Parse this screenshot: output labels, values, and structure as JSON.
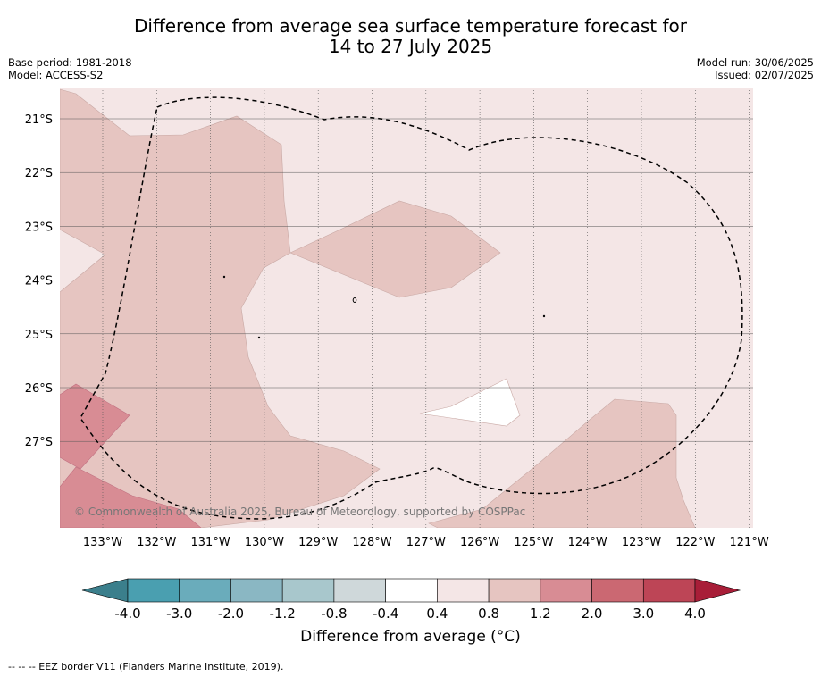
{
  "title_line1": "Difference from average sea surface temperature forecast for",
  "title_line2": "14 to 27 July 2025",
  "meta_left": [
    "Base period: 1981-2018",
    "Model: ACCESS-S2"
  ],
  "meta_right": [
    "Model run: 30/06/2025",
    "Issued: 02/07/2025"
  ],
  "map": {
    "lon_ticks": [
      "133°W",
      "132°W",
      "131°W",
      "130°W",
      "129°W",
      "128°W",
      "127°W",
      "126°W",
      "125°W",
      "124°W",
      "123°W",
      "122°W",
      "121°W"
    ],
    "lat_ticks": [
      "21°S",
      "22°S",
      "23°S",
      "24°S",
      "25°S",
      "26°S",
      "27°S"
    ],
    "copyright": "© Commonwealth of Australia 2025, Bureau of Meteorology, supported by COSPPac",
    "land_marks": [
      "island-1",
      "island-2",
      "island-3",
      "island-4"
    ]
  },
  "colorbar": {
    "label": "Difference from average (°C)",
    "ticks": [
      "-4.0",
      "-3.0",
      "-2.0",
      "-1.2",
      "-0.8",
      "-0.4",
      "0.4",
      "0.8",
      "1.2",
      "2.0",
      "3.0",
      "4.0"
    ],
    "colors": [
      "#3b7f8c",
      "#4a9fb0",
      "#6aacbb",
      "#8ab7c3",
      "#a8c7cc",
      "#cfd8da",
      "#ffffff",
      "#f4e6e6",
      "#e6c5c1",
      "#d88c94",
      "#cb6872",
      "#bd4556",
      "#a81e38"
    ]
  },
  "legend_note": "--  --  -- EEZ border V11 (Flanders Marine Institute, 2019).",
  "colors": {
    "anom_0_4_0_8": "#f4e6e6",
    "anom_0_8_1_2": "#e6c5c1",
    "anom_1_2_2_0": "#d88c94",
    "anom_neutral": "#ffffff",
    "grid": "#555555",
    "eez": "#000000"
  }
}
